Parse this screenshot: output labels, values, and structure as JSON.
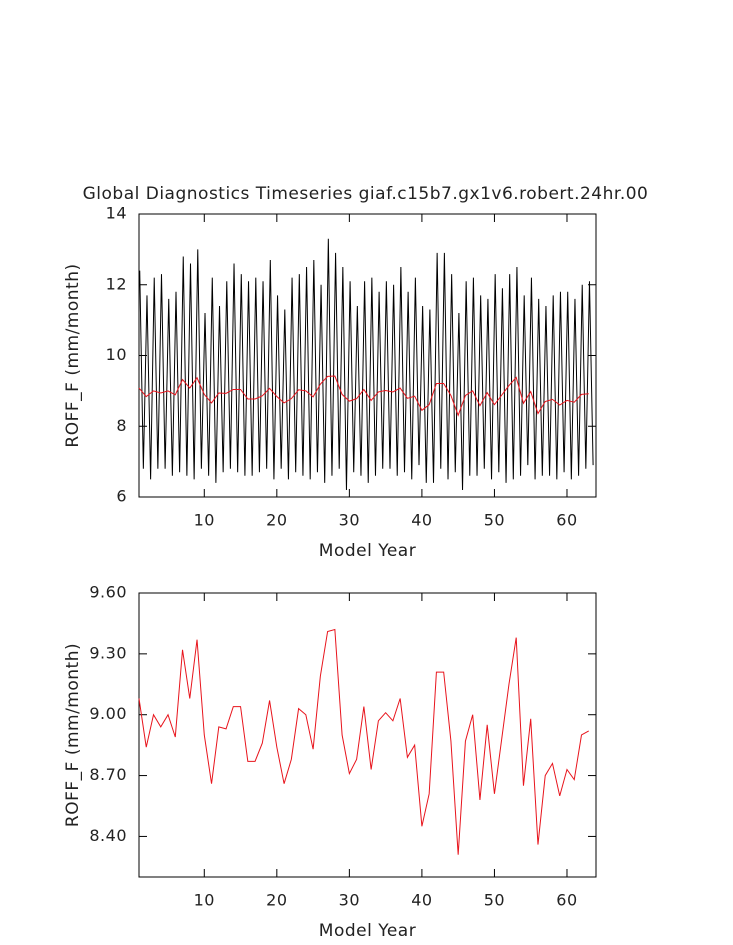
{
  "chart_data": [
    {
      "type": "line",
      "title": "Global Diagnostics Timeseries giaf.c15b7.gx1v6.robert.24hr.00",
      "xlabel": "Model Year",
      "ylabel": "ROFF_F (mm/month)",
      "xlim": [
        1,
        64
      ],
      "xticks": [
        10,
        20,
        30,
        40,
        50,
        60
      ],
      "ylim": [
        6,
        14
      ],
      "yticks": [
        6,
        8,
        10,
        12,
        14
      ],
      "series": [
        {
          "color": "#000000",
          "x": [
            1.1,
            1.6,
            2.1,
            2.6,
            3.1,
            3.6,
            4.1,
            4.6,
            5.1,
            5.6,
            6.1,
            6.6,
            7.1,
            7.6,
            8.1,
            8.6,
            9.1,
            9.6,
            10.1,
            10.6,
            11.1,
            11.6,
            12.1,
            12.6,
            13.1,
            13.6,
            14.1,
            14.6,
            15.1,
            15.6,
            16.1,
            16.6,
            17.1,
            17.6,
            18.1,
            18.6,
            19.1,
            19.6,
            20.1,
            20.6,
            21.1,
            21.6,
            22.1,
            22.6,
            23.1,
            23.6,
            24.1,
            24.6,
            25.1,
            25.6,
            26.1,
            26.6,
            27.1,
            27.6,
            28.1,
            28.6,
            29.1,
            29.6,
            30.1,
            30.6,
            31.1,
            31.6,
            32.1,
            32.6,
            33.1,
            33.6,
            34.1,
            34.6,
            35.1,
            35.6,
            36.1,
            36.6,
            37.1,
            37.6,
            38.1,
            38.6,
            39.1,
            39.6,
            40.1,
            40.6,
            41.1,
            41.6,
            42.1,
            42.6,
            43.1,
            43.6,
            44.1,
            44.6,
            45.1,
            45.6,
            46.1,
            46.6,
            47.1,
            47.6,
            48.1,
            48.6,
            49.1,
            49.6,
            50.1,
            50.6,
            51.1,
            51.6,
            52.1,
            52.6,
            53.1,
            53.6,
            54.1,
            54.6,
            55.1,
            55.6,
            56.1,
            56.6,
            57.1,
            57.6,
            58.1,
            58.6,
            59.1,
            59.6,
            60.1,
            60.6,
            61.1,
            61.6,
            62.1,
            62.6,
            63.1,
            63.6
          ],
          "values": [
            12.4,
            6.8,
            11.7,
            6.5,
            12.2,
            6.8,
            12.3,
            6.8,
            11.6,
            6.6,
            11.8,
            6.7,
            12.8,
            6.6,
            12.6,
            6.5,
            13.0,
            6.8,
            11.2,
            6.6,
            12.2,
            6.4,
            11.4,
            6.7,
            12.1,
            6.8,
            12.6,
            6.7,
            12.3,
            6.6,
            12.1,
            6.6,
            12.2,
            6.7,
            12.1,
            6.8,
            12.7,
            6.5,
            11.7,
            6.8,
            11.3,
            6.5,
            12.2,
            6.7,
            12.3,
            6.6,
            12.5,
            6.5,
            12.7,
            6.7,
            12.0,
            6.4,
            13.3,
            6.6,
            12.9,
            6.8,
            12.5,
            6.2,
            12.1,
            6.7,
            11.4,
            6.6,
            12.1,
            6.4,
            12.2,
            6.6,
            11.8,
            6.8,
            12.1,
            6.8,
            12.0,
            6.6,
            12.5,
            6.7,
            11.8,
            6.5,
            12.2,
            6.9,
            11.4,
            6.4,
            11.3,
            6.4,
            12.9,
            6.8,
            12.9,
            6.5,
            12.3,
            6.7,
            11.2,
            6.2,
            12.1,
            6.6,
            12.2,
            6.6,
            11.7,
            6.8,
            11.6,
            6.5,
            12.3,
            6.7,
            11.9,
            6.4,
            12.3,
            6.5,
            12.5,
            6.6,
            11.7,
            6.9,
            12.2,
            6.5,
            11.6,
            6.6,
            11.4,
            6.6,
            11.7,
            6.5,
            11.8,
            6.7,
            11.8,
            6.5,
            11.6,
            6.6,
            12.0,
            6.8,
            12.1,
            6.9
          ]
        },
        {
          "color": "#e8141c",
          "x": [
            1,
            2,
            3,
            4,
            5,
            6,
            7,
            8,
            9,
            10,
            11,
            12,
            13,
            14,
            15,
            16,
            17,
            18,
            19,
            20,
            21,
            22,
            23,
            24,
            25,
            26,
            27,
            28,
            29,
            30,
            31,
            32,
            33,
            34,
            35,
            36,
            37,
            38,
            39,
            40,
            41,
            42,
            43,
            44,
            45,
            46,
            47,
            48,
            49,
            50,
            51,
            52,
            53,
            54,
            55,
            56,
            57,
            58,
            59,
            60,
            61,
            62,
            63
          ],
          "values": [
            9.08,
            8.84,
            9.0,
            8.94,
            9.0,
            8.89,
            9.32,
            9.08,
            9.37,
            8.9,
            8.66,
            8.94,
            8.93,
            9.04,
            9.04,
            8.77,
            8.77,
            8.86,
            9.07,
            8.84,
            8.66,
            8.78,
            9.03,
            9.0,
            8.83,
            9.19,
            9.41,
            9.42,
            8.9,
            8.71,
            8.78,
            9.04,
            8.73,
            8.97,
            9.01,
            8.97,
            9.08,
            8.79,
            8.85,
            8.45,
            8.61,
            9.21,
            9.21,
            8.87,
            8.31,
            8.87,
            9.0,
            8.58,
            8.95,
            8.61,
            8.88,
            9.15,
            9.38,
            8.65,
            8.98,
            8.36,
            8.7,
            8.76,
            8.6,
            8.73,
            8.68,
            8.9,
            8.92
          ]
        }
      ]
    },
    {
      "type": "line",
      "xlabel": "Model Year",
      "ylabel": "ROFF_F (mm/month)",
      "xlim": [
        1,
        64
      ],
      "xticks": [
        10,
        20,
        30,
        40,
        50,
        60
      ],
      "ylim": [
        8.2,
        9.6
      ],
      "yticks": [
        {
          "value": 8.4,
          "label": "8.40"
        },
        {
          "value": 8.7,
          "label": "8.70"
        },
        {
          "value": 9.0,
          "label": "9.00"
        },
        {
          "value": 9.3,
          "label": "9.30"
        },
        {
          "value": 9.6,
          "label": "9.60"
        }
      ],
      "series": [
        {
          "color": "#e8141c",
          "x": [
            1,
            2,
            3,
            4,
            5,
            6,
            7,
            8,
            9,
            10,
            11,
            12,
            13,
            14,
            15,
            16,
            17,
            18,
            19,
            20,
            21,
            22,
            23,
            24,
            25,
            26,
            27,
            28,
            29,
            30,
            31,
            32,
            33,
            34,
            35,
            36,
            37,
            38,
            39,
            40,
            41,
            42,
            43,
            44,
            45,
            46,
            47,
            48,
            49,
            50,
            51,
            52,
            53,
            54,
            55,
            56,
            57,
            58,
            59,
            60,
            61,
            62,
            63
          ],
          "values": [
            9.08,
            8.84,
            9.0,
            8.94,
            9.0,
            8.89,
            9.32,
            9.08,
            9.37,
            8.9,
            8.66,
            8.94,
            8.93,
            9.04,
            9.04,
            8.77,
            8.77,
            8.86,
            9.07,
            8.84,
            8.66,
            8.78,
            9.03,
            9.0,
            8.83,
            9.19,
            9.41,
            9.42,
            8.9,
            8.71,
            8.78,
            9.04,
            8.73,
            8.97,
            9.01,
            8.97,
            9.08,
            8.79,
            8.85,
            8.45,
            8.61,
            9.21,
            9.21,
            8.87,
            8.31,
            8.87,
            9.0,
            8.58,
            8.95,
            8.61,
            8.88,
            9.15,
            9.38,
            8.65,
            8.98,
            8.36,
            8.7,
            8.76,
            8.6,
            8.73,
            8.68,
            8.9,
            8.92
          ]
        }
      ]
    }
  ]
}
